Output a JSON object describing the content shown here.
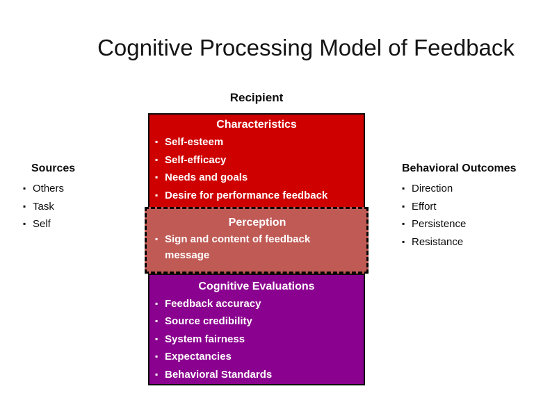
{
  "bullet_char": "▪",
  "title": "Cognitive Processing Model of Feedback",
  "recipient_label": "Recipient",
  "left_panel": {
    "heading": "Sources",
    "items": [
      "Others",
      "Task",
      "Self"
    ]
  },
  "right_panel": {
    "heading": "Behavioral Outcomes",
    "items": [
      "Direction",
      "Effort",
      "Persistence",
      "Resistance"
    ]
  },
  "boxes": {
    "characteristics": {
      "heading": "Characteristics",
      "items": [
        "Self-esteem",
        "Self-efficacy",
        "Needs and goals",
        "Desire for performance feedback"
      ],
      "color": "#CE0000"
    },
    "perception": {
      "heading": "Perception",
      "items": [
        "Sign and content of feedback message"
      ],
      "color": "#C05A55"
    },
    "cognitive_evaluations": {
      "heading": "Cognitive Evaluations",
      "items": [
        "Feedback accuracy",
        "Source credibility",
        "System fairness",
        "Expectancies",
        "Behavioral Standards"
      ],
      "color": "#8B018F"
    }
  },
  "colors": {
    "background": "#FFFFFF",
    "text": "#0D0D0D",
    "box_text": "#FFFFFF",
    "border": "#000000",
    "characteristics_fill": "#CE0000",
    "perception_fill": "#C05A55",
    "cognitive_fill": "#8B018F"
  }
}
